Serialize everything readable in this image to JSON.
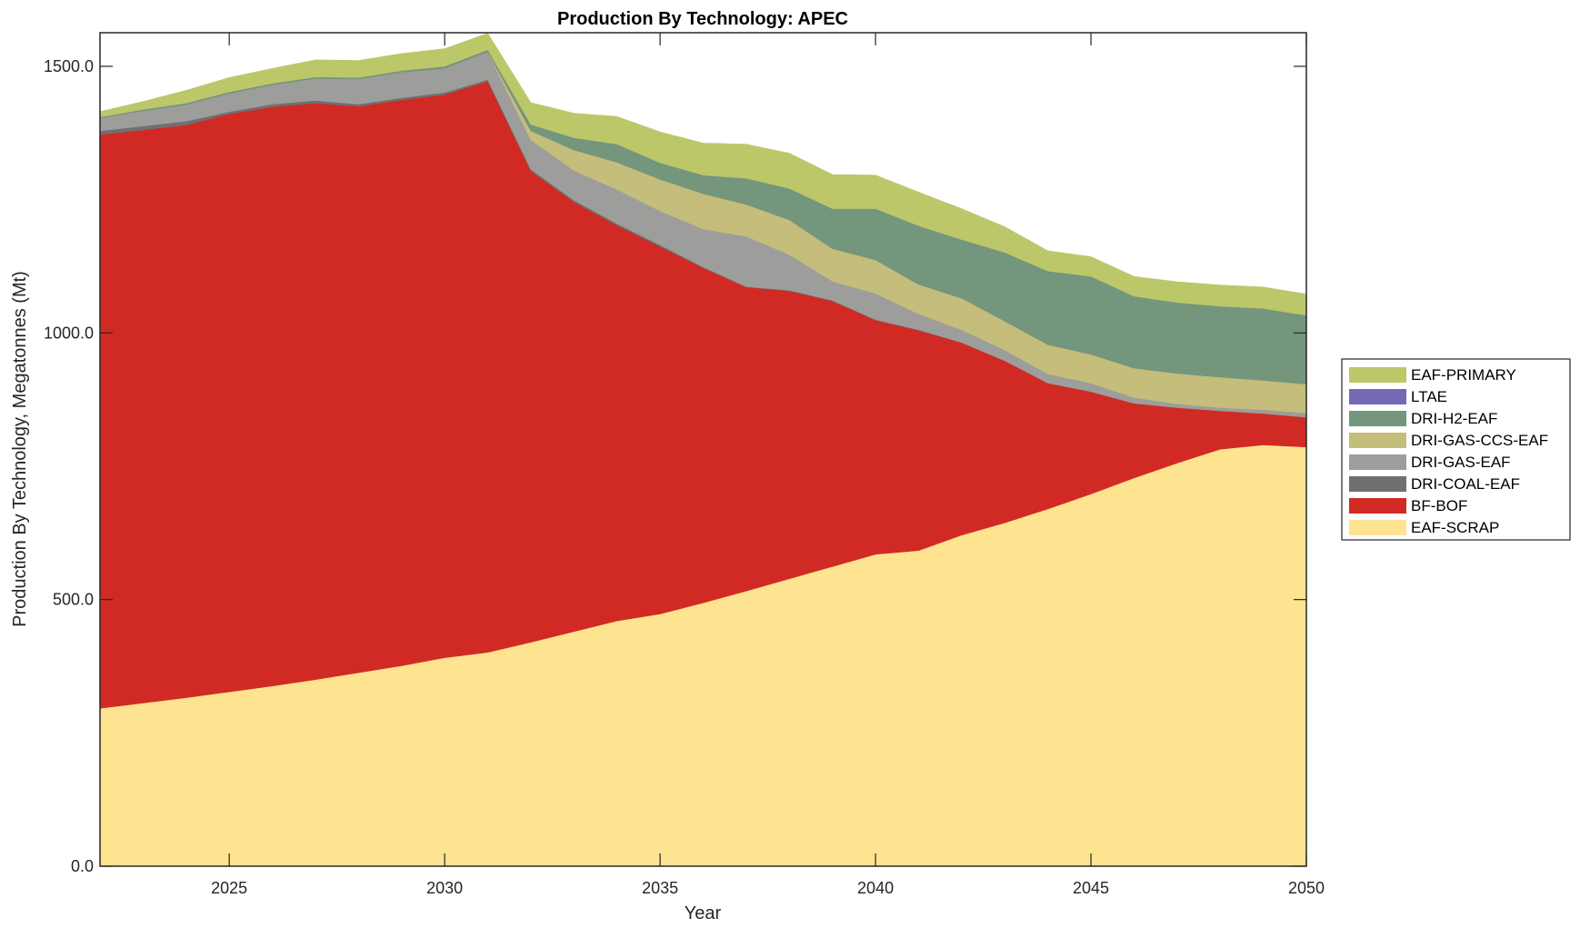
{
  "chart_data": {
    "type": "area",
    "stacked": true,
    "title": "Production By Technology: APEC",
    "xlabel": "Year",
    "ylabel": "Production By Technology, Megatonnes (Mt)",
    "xlim": [
      2022,
      2050
    ],
    "ylim": [
      0,
      1563
    ],
    "x_ticks": [
      2025,
      2030,
      2035,
      2040,
      2045,
      2050
    ],
    "x_tick_labels": [
      "2025",
      "2030",
      "2035",
      "2040",
      "2045",
      "2050"
    ],
    "y_ticks": [
      0,
      500,
      1000,
      1500
    ],
    "y_tick_labels": [
      "0.0",
      "500.0",
      "1000.0",
      "1500.0"
    ],
    "grid": false,
    "legend_position": "right",
    "x": [
      2022,
      2023,
      2024,
      2025,
      2026,
      2027,
      2028,
      2029,
      2030,
      2031,
      2032,
      2033,
      2034,
      2035,
      2036,
      2037,
      2038,
      2039,
      2040,
      2041,
      2042,
      2043,
      2044,
      2045,
      2046,
      2047,
      2048,
      2049,
      2050
    ],
    "series": [
      {
        "name": "EAF-SCRAP",
        "color": "#fee391",
        "values": [
          296,
          306,
          316,
          327,
          338,
          350,
          363,
          376,
          391,
          401,
          420,
          440,
          460,
          473,
          494,
          516,
          539,
          562,
          585,
          592,
          621,
          644,
          670,
          698,
          728,
          756,
          782,
          790,
          786
        ]
      },
      {
        "name": "BF-BOF",
        "color": "#d12a24",
        "values": [
          1076,
          1075,
          1074,
          1084,
          1086,
          1081,
          1062,
          1061,
          1056,
          1071,
          884,
          806,
          742,
          689,
          628,
          570,
          540,
          498,
          439,
          413,
          361,
          304,
          236,
          192,
          140,
          104,
          72,
          59,
          56
        ]
      },
      {
        "name": "DRI-COAL-EAF",
        "color": "#707070",
        "values": [
          7,
          7,
          7,
          4,
          5,
          5,
          4,
          4,
          4,
          3,
          3,
          3,
          3,
          3,
          2,
          1,
          1,
          1,
          1,
          1,
          0,
          0,
          0,
          0,
          0,
          0,
          0,
          0,
          0
        ]
      },
      {
        "name": "DRI-GAS-EAF",
        "color": "#9d9d9b",
        "values": [
          24,
          28,
          31,
          34,
          36,
          41,
          47,
          48,
          45,
          52,
          55,
          56,
          64,
          64,
          71,
          94,
          67,
          36,
          49,
          30,
          24,
          20,
          17,
          16,
          11,
          7,
          6,
          7,
          8
        ]
      },
      {
        "name": "DRI-GAS-CCS-EAF",
        "color": "#c5bd7c",
        "values": [
          0,
          0,
          0,
          0,
          0,
          0,
          0,
          0,
          0,
          0,
          17,
          38,
          51,
          59,
          66,
          60,
          65,
          61,
          63,
          55,
          59,
          54,
          55,
          54,
          55,
          57,
          57,
          55,
          54
        ]
      },
      {
        "name": "DRI-H2-EAF",
        "color": "#73967c",
        "values": [
          2,
          3,
          3,
          3,
          3,
          3,
          3,
          3,
          4,
          4,
          12,
          23,
          34,
          31,
          35,
          49,
          59,
          75,
          96,
          110,
          110,
          129,
          138,
          146,
          135,
          133,
          133,
          135,
          129
        ]
      },
      {
        "name": "LTAE",
        "color": "#7569b5",
        "values": [
          0,
          0,
          0,
          0,
          0,
          0,
          0,
          0,
          0,
          0,
          0,
          0,
          0,
          0,
          0,
          0,
          0,
          0,
          0,
          0,
          0,
          0,
          0,
          0,
          0,
          0,
          0,
          0,
          0
        ]
      },
      {
        "name": "EAF-PRIMARY",
        "color": "#bcc76a",
        "values": [
          10,
          15,
          24,
          27,
          28,
          32,
          32,
          32,
          33,
          31,
          41,
          46,
          52,
          58,
          60,
          64,
          66,
          64,
          63,
          63,
          58,
          48,
          38,
          37,
          37,
          39,
          40,
          40,
          40
        ]
      }
    ],
    "legend_order": [
      "EAF-PRIMARY",
      "LTAE",
      "DRI-H2-EAF",
      "DRI-GAS-CCS-EAF",
      "DRI-GAS-EAF",
      "DRI-COAL-EAF",
      "BF-BOF",
      "EAF-SCRAP"
    ]
  }
}
